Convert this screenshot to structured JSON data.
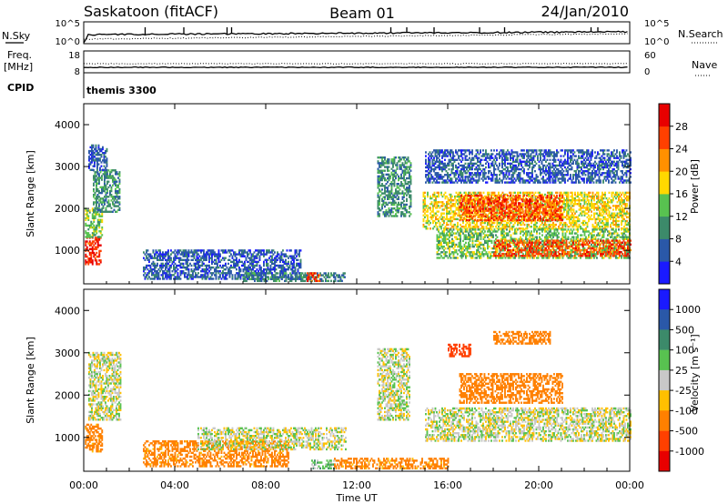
{
  "header": {
    "station": "Saskatoon (fitACF)",
    "beam": "Beam 01",
    "date": "24/Jan/2010"
  },
  "top_panels": {
    "nsky_label": "N.Sky",
    "nsky_ticks": [
      "10^5",
      "10^0"
    ],
    "nsearch_label": "N.Search",
    "freq_label_1": "Freq.",
    "freq_label_2": "[MHz]",
    "freq_ticks": [
      "18",
      "8"
    ],
    "nave_label": "Nave",
    "nave_ticks": [
      "60",
      "0"
    ],
    "cpid_label": "CPID",
    "cpid_value": "themis 3300"
  },
  "chart_data": [
    {
      "type": "heatmap",
      "title": "",
      "ylabel": "Slant Range [km]",
      "xlabel": "",
      "ylim": [
        200,
        4500
      ],
      "yticks": [
        1000,
        2000,
        3000,
        4000
      ],
      "colorbar_label": "Power [dB]",
      "colorbar_ticks": [
        4,
        8,
        12,
        16,
        20,
        24,
        28
      ],
      "colorbar_range": [
        0,
        32
      ],
      "colors": [
        "#1a1aff",
        "#2a58a8",
        "#3c8a6a",
        "#58c250",
        "#ffd800",
        "#ff9000",
        "#ff4000",
        "#e80000"
      ],
      "regions": [
        {
          "t": [
            0.05,
            0.75
          ],
          "r": [
            650,
            1300
          ],
          "v": 27
        },
        {
          "t": [
            0.05,
            0.8
          ],
          "r": [
            1300,
            2000
          ],
          "v": 14
        },
        {
          "t": [
            0.4,
            1.6
          ],
          "r": [
            1900,
            2900
          ],
          "v": 10
        },
        {
          "t": [
            0.2,
            1.0
          ],
          "r": [
            2900,
            3500
          ],
          "v": 6
        },
        {
          "t": [
            2.6,
            9.5
          ],
          "r": [
            300,
            1000
          ],
          "v": 6
        },
        {
          "t": [
            7.0,
            11.5
          ],
          "r": [
            250,
            450
          ],
          "v": 9
        },
        {
          "t": [
            9.8,
            10.4
          ],
          "r": [
            250,
            450
          ],
          "v": 26
        },
        {
          "t": [
            12.9,
            14.4
          ],
          "r": [
            1800,
            3200
          ],
          "v": 10
        },
        {
          "t": [
            14.9,
            24.0
          ],
          "r": [
            1500,
            2400
          ],
          "v": 18
        },
        {
          "t": [
            16.5,
            21.0
          ],
          "r": [
            1700,
            2300
          ],
          "v": 26
        },
        {
          "t": [
            15.5,
            24.0
          ],
          "r": [
            800,
            1500
          ],
          "v": 14
        },
        {
          "t": [
            18.0,
            24.0
          ],
          "r": [
            850,
            1250
          ],
          "v": 26
        },
        {
          "t": [
            15.0,
            24.0
          ],
          "r": [
            2600,
            3400
          ],
          "v": 6
        }
      ]
    },
    {
      "type": "heatmap",
      "title": "",
      "ylabel": "Slant Range [km]",
      "xlabel": "Time UT",
      "ylim": [
        200,
        4500
      ],
      "yticks": [
        1000,
        2000,
        3000,
        4000
      ],
      "xticks": [
        "00:00",
        "04:00",
        "08:00",
        "12:00",
        "16:00",
        "20:00",
        "00:00"
      ],
      "xrange_hours": [
        0,
        24
      ],
      "colorbar_label": "Velocity [m s⁻¹]",
      "colorbar_ticks": [
        1000,
        500,
        100,
        25,
        -25,
        -100,
        -500,
        -1000
      ],
      "colorbar_range": [
        -1200,
        1200
      ],
      "colors": [
        "#1a1aff",
        "#2a58a8",
        "#3c8a6a",
        "#58c250",
        "#c8c8c8",
        "#ffc000",
        "#ff8000",
        "#ff4000",
        "#e80000"
      ],
      "regions": [
        {
          "t": [
            0.05,
            0.8
          ],
          "r": [
            650,
            1300
          ],
          "v": -150
        },
        {
          "t": [
            0.2,
            1.6
          ],
          "r": [
            1400,
            3000
          ],
          "v": 0
        },
        {
          "t": [
            2.6,
            9.0
          ],
          "r": [
            300,
            900
          ],
          "v": -150
        },
        {
          "t": [
            5.0,
            11.5
          ],
          "r": [
            700,
            1200
          ],
          "v": 0
        },
        {
          "t": [
            10.0,
            11.0
          ],
          "r": [
            250,
            450
          ],
          "v": 60
        },
        {
          "t": [
            12.9,
            14.3
          ],
          "r": [
            1400,
            3100
          ],
          "v": 0
        },
        {
          "t": [
            15.0,
            24.0
          ],
          "r": [
            900,
            1700
          ],
          "v": 0
        },
        {
          "t": [
            16.5,
            21.0
          ],
          "r": [
            1800,
            2500
          ],
          "v": -400
        },
        {
          "t": [
            18.0,
            20.5
          ],
          "r": [
            3200,
            3500
          ],
          "v": -400
        },
        {
          "t": [
            16.0,
            17.0
          ],
          "r": [
            2900,
            3200
          ],
          "v": -600
        },
        {
          "t": [
            11.0,
            16.0
          ],
          "r": [
            250,
            500
          ],
          "v": -150
        }
      ]
    }
  ]
}
